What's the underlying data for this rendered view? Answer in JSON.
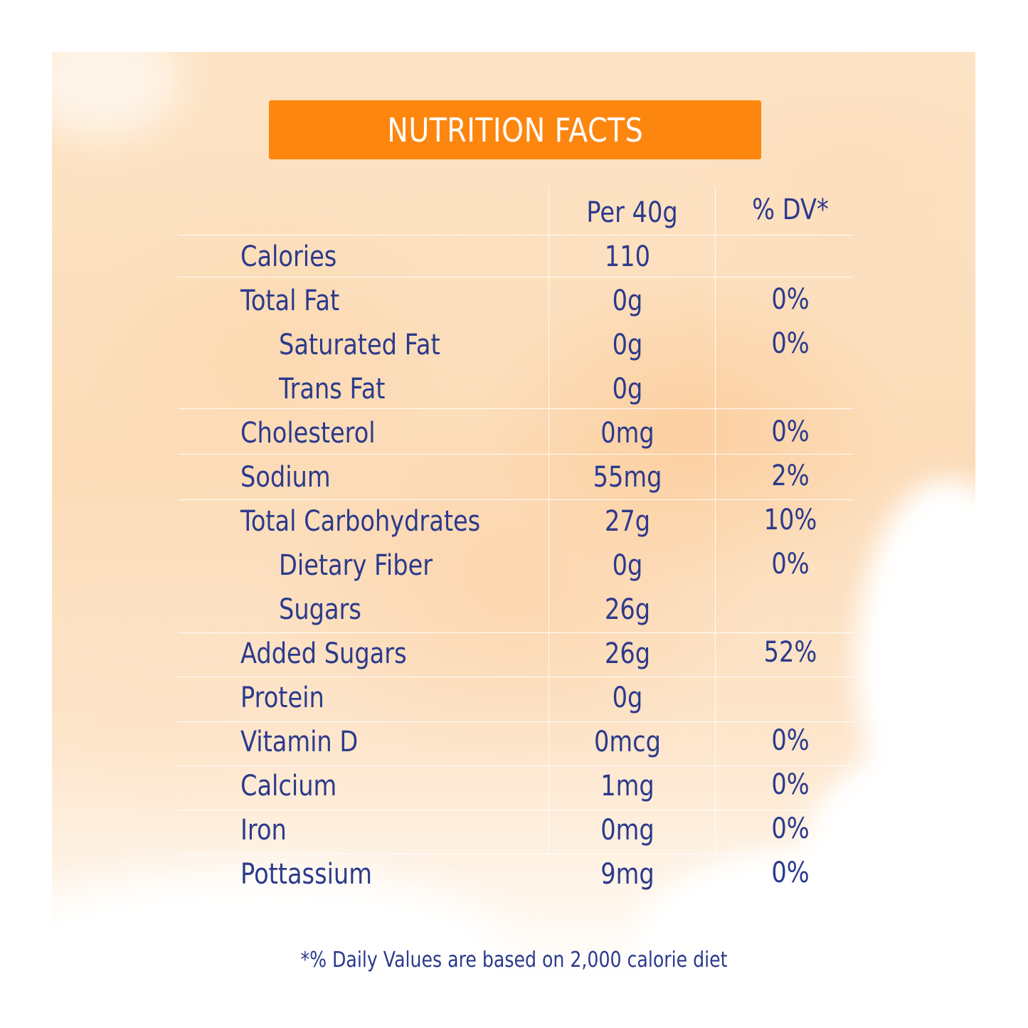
{
  "title": "NUTRITION FACTS",
  "columns": {
    "per": "Per 40g",
    "dv": "% DV*"
  },
  "rows": [
    {
      "name": "Calories",
      "amount": "110",
      "dv": ""
    },
    {
      "name": "Total Fat",
      "amount": "0g",
      "dv": "0%"
    },
    {
      "name": "Saturated Fat",
      "amount": "0g",
      "dv": "0%"
    },
    {
      "name": "Trans Fat",
      "amount": "0g",
      "dv": ""
    },
    {
      "name": "Cholesterol",
      "amount": "0mg",
      "dv": "0%"
    },
    {
      "name": "Sodium",
      "amount": "55mg",
      "dv": "2%"
    },
    {
      "name": "Total Carbohydrates",
      "amount": "27g",
      "dv": "10%"
    },
    {
      "name": "Dietary Fiber",
      "amount": "0g",
      "dv": "0%"
    },
    {
      "name": "Sugars",
      "amount": "26g",
      "dv": ""
    },
    {
      "name": "Added Sugars",
      "amount": "26g",
      "dv": "52%"
    },
    {
      "name": "Protein",
      "amount": "0g",
      "dv": ""
    },
    {
      "name": "Vitamin D",
      "amount": "0mcg",
      "dv": "0%"
    },
    {
      "name": "Calcium",
      "amount": "1mg",
      "dv": "0%"
    },
    {
      "name": "Iron",
      "amount": "0mg",
      "dv": "0%"
    },
    {
      "name": "Pottassium",
      "amount": "9mg",
      "dv": "0%"
    }
  ],
  "footnote": "*% Daily Values are based on 2,000 calorie diet",
  "colors": {
    "accent": "#fd860f",
    "text": "#2b3a8c",
    "background": "#fde4c6"
  }
}
